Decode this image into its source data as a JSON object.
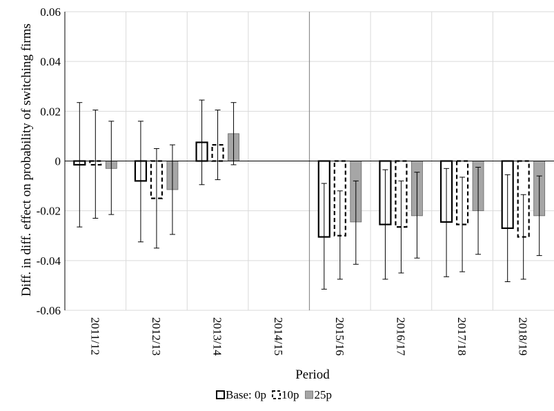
{
  "chart_data": {
    "type": "bar",
    "title": "",
    "xlabel": "Period",
    "ylabel": "Diff. in diff. effect on probability of switching firms",
    "ylim": [
      -0.06,
      0.06
    ],
    "yticks": [
      0.06,
      0.04,
      0.02,
      0,
      -0.02,
      -0.04,
      -0.06
    ],
    "ytick_labels": [
      "0.06",
      "0.04",
      "0.02",
      "0",
      "-0.02",
      "-0.04",
      "-0.06"
    ],
    "categories": [
      "2011/12",
      "2012/13",
      "2013/14",
      "2014/15",
      "2015/16",
      "2016/17",
      "2017/18",
      "2018/19"
    ],
    "grid": true,
    "legend_position": "bottom-center",
    "reference_line_after_category": "2014/15",
    "series": [
      {
        "name": "Base: 0p",
        "style": "solid-outline",
        "values": [
          -0.0015,
          -0.008,
          0.0075,
          0,
          -0.0305,
          -0.0255,
          -0.0245,
          -0.027
        ],
        "err_low": [
          -0.0265,
          -0.0325,
          -0.0095,
          0,
          -0.0515,
          -0.0475,
          -0.0465,
          -0.0485
        ],
        "err_high": [
          0.0235,
          0.016,
          0.0245,
          0,
          -0.009,
          -0.0035,
          -0.003,
          -0.0055
        ]
      },
      {
        "name": "10p",
        "style": "dashed-outline",
        "values": [
          -0.0015,
          -0.015,
          0.0065,
          0,
          -0.03,
          -0.0265,
          -0.0255,
          -0.0305
        ],
        "err_low": [
          -0.023,
          -0.035,
          -0.0075,
          0,
          -0.0475,
          -0.045,
          -0.0445,
          -0.0475
        ],
        "err_high": [
          0.0205,
          0.005,
          0.0205,
          0,
          -0.012,
          -0.008,
          -0.0065,
          -0.0135
        ]
      },
      {
        "name": "25p",
        "style": "gray-fill",
        "values": [
          -0.003,
          -0.0115,
          0.011,
          0,
          -0.0245,
          -0.022,
          -0.02,
          -0.022
        ],
        "err_low": [
          -0.0215,
          -0.0295,
          -0.0015,
          0,
          -0.0415,
          -0.039,
          -0.0375,
          -0.038
        ],
        "err_high": [
          0.016,
          0.0065,
          0.0235,
          0,
          -0.008,
          -0.0045,
          -0.0025,
          -0.006
        ]
      }
    ],
    "colors": {
      "fill_gray": "#a6a6a6",
      "outline": "#000000",
      "grid": "#d9d9d9",
      "reference_line": "#8c8c8c"
    }
  }
}
